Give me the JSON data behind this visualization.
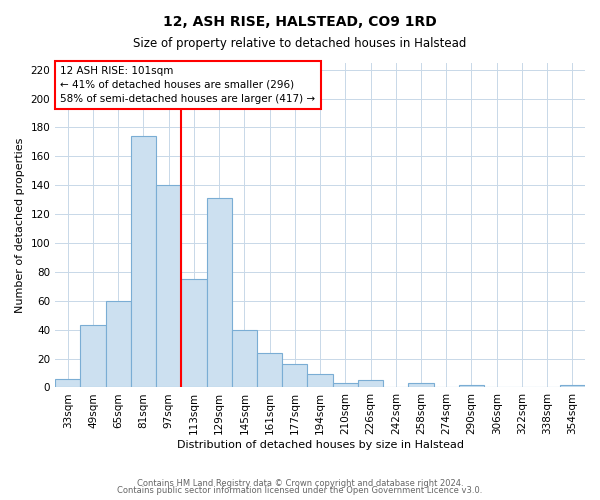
{
  "title": "12, ASH RISE, HALSTEAD, CO9 1RD",
  "subtitle": "Size of property relative to detached houses in Halstead",
  "xlabel": "Distribution of detached houses by size in Halstead",
  "ylabel": "Number of detached properties",
  "bin_labels": [
    "33sqm",
    "49sqm",
    "65sqm",
    "81sqm",
    "97sqm",
    "113sqm",
    "129sqm",
    "145sqm",
    "161sqm",
    "177sqm",
    "194sqm",
    "210sqm",
    "226sqm",
    "242sqm",
    "258sqm",
    "274sqm",
    "290sqm",
    "306sqm",
    "322sqm",
    "338sqm",
    "354sqm"
  ],
  "bar_values": [
    6,
    43,
    60,
    174,
    140,
    75,
    131,
    40,
    24,
    16,
    9,
    3,
    5,
    0,
    3,
    0,
    2,
    0,
    0,
    0,
    2
  ],
  "bar_color": "#cce0f0",
  "bar_edge_color": "#7aadd4",
  "vline_x_bar_index": 4.5,
  "vline_color": "red",
  "annotation_text": "12 ASH RISE: 101sqm\n← 41% of detached houses are smaller (296)\n58% of semi-detached houses are larger (417) →",
  "annotation_box_color": "white",
  "annotation_box_edge": "red",
  "ylim": [
    0,
    225
  ],
  "yticks": [
    0,
    20,
    40,
    60,
    80,
    100,
    120,
    140,
    160,
    180,
    200,
    220
  ],
  "footer1": "Contains HM Land Registry data © Crown copyright and database right 2024.",
  "footer2": "Contains public sector information licensed under the Open Government Licence v3.0.",
  "bg_color": "#ffffff",
  "grid_color": "#c8d8e8",
  "title_fontsize": 10,
  "subtitle_fontsize": 8.5,
  "xlabel_fontsize": 8,
  "ylabel_fontsize": 8,
  "annotation_fontsize": 7.5,
  "tick_fontsize": 7.5
}
